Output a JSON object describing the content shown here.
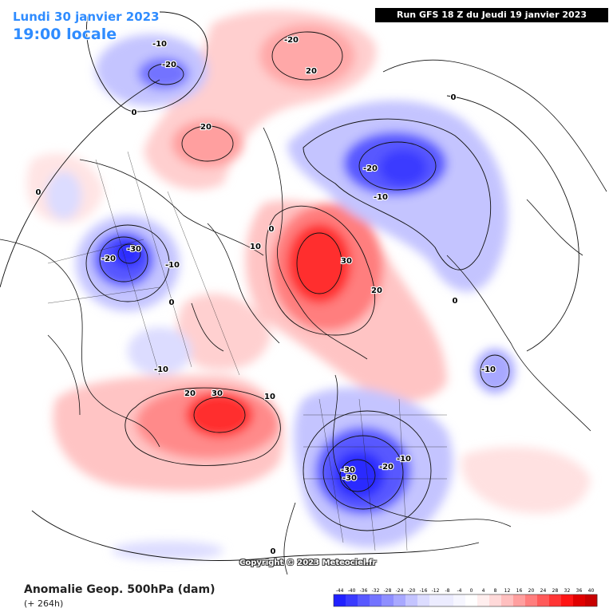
{
  "header": {
    "valid_date": "Lundi 30 janvier 2023",
    "local_time": "19:00 locale",
    "run_info": "Run GFS 18 Z du Jeudi 19 janvier 2023"
  },
  "footer": {
    "field_title": "Anomalie Geop. 500hPa (dam)",
    "lead_time": "(+ 264h)",
    "copyright": "Copyright © 2023 Meteociel.fr"
  },
  "colorbar": {
    "labels": [
      "-44",
      "-40",
      "-36",
      "-32",
      "-28",
      "-24",
      "-20",
      "-16",
      "-12",
      "-8",
      "-4",
      "0",
      "4",
      "8",
      "12",
      "16",
      "20",
      "24",
      "28",
      "32",
      "36",
      "40"
    ]
  },
  "contour_labels": [
    {
      "text": "-10"
    },
    {
      "text": "-20"
    },
    {
      "text": "0"
    },
    {
      "text": "-20"
    },
    {
      "text": "20"
    },
    {
      "text": "20"
    },
    {
      "text": "0"
    },
    {
      "text": "0"
    },
    {
      "text": "-20"
    },
    {
      "text": "-10"
    },
    {
      "text": "0"
    },
    {
      "text": "-20"
    },
    {
      "text": "-30"
    },
    {
      "text": "-10"
    },
    {
      "text": "0"
    },
    {
      "text": "10"
    },
    {
      "text": "30"
    },
    {
      "text": "20"
    },
    {
      "text": "0"
    },
    {
      "text": "-10"
    },
    {
      "text": "20"
    },
    {
      "text": "30"
    },
    {
      "text": "10"
    },
    {
      "text": "-10"
    },
    {
      "text": "-30"
    },
    {
      "text": "-30"
    },
    {
      "text": "-20"
    },
    {
      "text": "-10"
    },
    {
      "text": "0"
    }
  ],
  "palette": {
    "neg": [
      "#2020ff",
      "#3a3aff",
      "#5858ff",
      "#7373ff",
      "#8e8eff",
      "#a8a8ff",
      "#c4c4ff",
      "#dcdcff",
      "#ececff"
    ],
    "pos": [
      "#ffeeee",
      "#ffd9d9",
      "#ffbfbf",
      "#ff9f9f",
      "#ff7e7e",
      "#ff5a5a",
      "#ff3535",
      "#ff1414",
      "#e00000"
    ]
  }
}
